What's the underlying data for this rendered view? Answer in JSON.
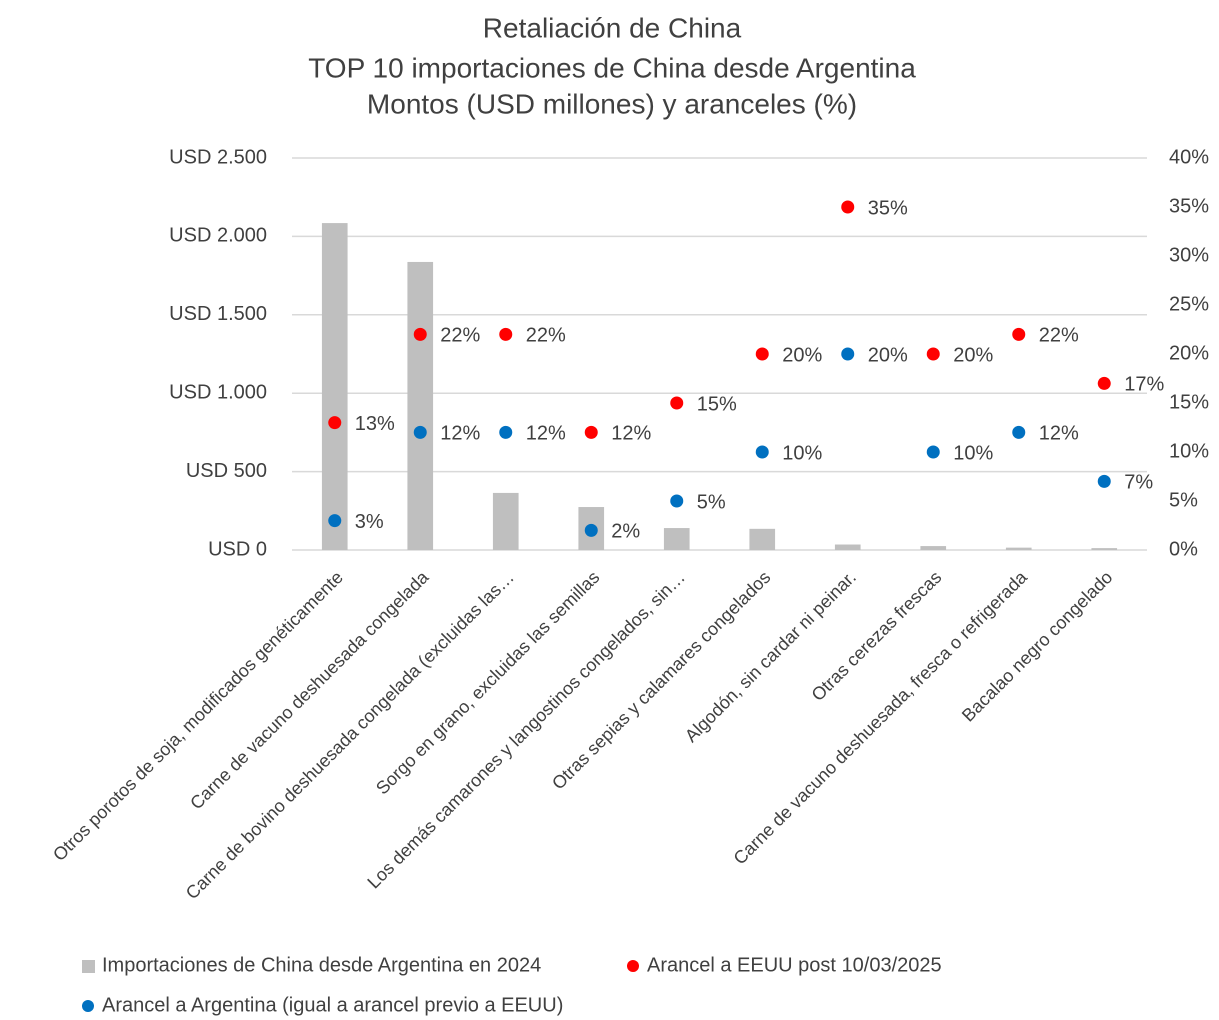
{
  "chart_data": {
    "type": "bar",
    "title": [
      "Retaliación de China",
      "TOP 10 importaciones de China desde Argentina",
      "Montos (USD millones) y aranceles (%)"
    ],
    "categories": [
      "Otros porotos de soja, modificados genéticamente",
      "Carne de vacuno deshuesada congelada",
      "Carne de bovino deshuesada congelada (excluidas las…",
      "Sorgo en grano, excluidas las semillas",
      "Los demás camarones y langostinos congelados, sin…",
      "Otras sepias y calamares congelados",
      "Algodón, sin cardar ni peinar.",
      "Otras cerezas frescas",
      "Carne de vacuno deshuesada, fresca o refrigerada",
      "Bacalao negro congelado"
    ],
    "series": [
      {
        "name": "Importaciones de China desde Argentina en 2024",
        "type": "bar",
        "color": "#bfbfbf",
        "values": [
          2085,
          1837,
          364,
          274,
          140,
          135,
          35,
          25,
          15,
          12
        ]
      },
      {
        "name": "Arancel a EEUU post 10/03/2025",
        "type": "scatter",
        "axis": "y2",
        "color": "#ff0000",
        "values": [
          13,
          22,
          22,
          12,
          15,
          20,
          35,
          20,
          22,
          17
        ],
        "value_labels": [
          "13%",
          "22%",
          "22%",
          "12%",
          "15%",
          "20%",
          "35%",
          "20%",
          "22%",
          "17%"
        ]
      },
      {
        "name": "Arancel a Argentina (igual a arancel previo a EEUU)",
        "type": "scatter",
        "axis": "y2",
        "color": "#0070c0",
        "values": [
          3,
          12,
          12,
          2,
          5,
          10,
          20,
          10,
          12,
          7
        ],
        "value_labels": [
          "3%",
          "12%",
          "12%",
          "2%",
          "5%",
          "10%",
          "20%",
          "10%",
          "12%",
          "7%"
        ]
      }
    ],
    "ylim": [
      0,
      2500
    ],
    "yticks": [
      {
        "value": 0,
        "label": "USD 0"
      },
      {
        "value": 500,
        "label": "USD 500"
      },
      {
        "value": 1000,
        "label": "USD 1.000"
      },
      {
        "value": 1500,
        "label": "USD 1.500"
      },
      {
        "value": 2000,
        "label": "USD 2.000"
      },
      {
        "value": 2500,
        "label": "USD 2.500"
      }
    ],
    "y2lim": [
      0,
      40
    ],
    "y2ticks": [
      {
        "value": 0,
        "label": "0%"
      },
      {
        "value": 5,
        "label": "5%"
      },
      {
        "value": 10,
        "label": "10%"
      },
      {
        "value": 15,
        "label": "15%"
      },
      {
        "value": 20,
        "label": "20%"
      },
      {
        "value": 25,
        "label": "25%"
      },
      {
        "value": 30,
        "label": "30%"
      },
      {
        "value": 35,
        "label": "35%"
      },
      {
        "value": 40,
        "label": "40%"
      }
    ],
    "grid": true
  }
}
